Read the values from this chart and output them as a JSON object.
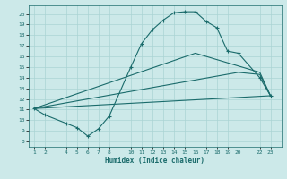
{
  "xlabel": "Humidex (Indice chaleur)",
  "bg_color": "#cce9e9",
  "line_color": "#1a6b6b",
  "grid_color": "#aad4d4",
  "xticks": [
    1,
    2,
    4,
    5,
    6,
    7,
    8,
    10,
    11,
    12,
    13,
    14,
    15,
    16,
    17,
    18,
    19,
    20,
    22,
    23
  ],
  "yticks": [
    8,
    9,
    10,
    11,
    12,
    13,
    14,
    15,
    16,
    17,
    18,
    19,
    20
  ],
  "xlim": [
    0.5,
    24.0
  ],
  "ylim": [
    7.5,
    20.8
  ],
  "line1": {
    "x": [
      1,
      2,
      4,
      5,
      6,
      7,
      8,
      10,
      11,
      12,
      13,
      14,
      15,
      16,
      17,
      18,
      19,
      20,
      22,
      23
    ],
    "y": [
      11.1,
      10.5,
      9.7,
      9.3,
      8.5,
      9.2,
      10.4,
      15.0,
      17.2,
      18.5,
      19.4,
      20.1,
      20.2,
      20.2,
      19.3,
      18.7,
      16.5,
      16.3,
      14.0,
      12.3
    ]
  },
  "line2": {
    "x": [
      1,
      16,
      22,
      23
    ],
    "y": [
      11.1,
      16.3,
      14.5,
      12.3
    ]
  },
  "line3": {
    "x": [
      1,
      20,
      22,
      23
    ],
    "y": [
      11.1,
      14.5,
      14.3,
      12.3
    ]
  },
  "line4": {
    "x": [
      1,
      23
    ],
    "y": [
      11.1,
      12.3
    ]
  }
}
